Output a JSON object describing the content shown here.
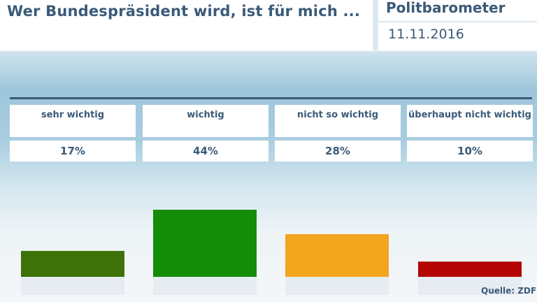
{
  "header": {
    "title": "Wer Bundespräsident wird, ist für mich ...",
    "source_name": "Politbarometer",
    "date": "11.11.2016"
  },
  "footer": {
    "source": "Quelle: ZDF"
  },
  "chart_data": {
    "type": "bar",
    "title": "Wer Bundespräsident wird, ist für mich ...",
    "categories": [
      "sehr wichtig",
      "wichtig",
      "nicht so wichtig",
      "überhaupt nicht wichtig"
    ],
    "values": [
      17,
      44,
      28,
      10
    ],
    "value_labels": [
      "17%",
      "44%",
      "28%",
      "10%"
    ],
    "colors": [
      "#3e7208",
      "#138c0a",
      "#f2a51d",
      "#b40404"
    ],
    "ylim": [
      0,
      44
    ],
    "grid": false,
    "legend": "none"
  }
}
